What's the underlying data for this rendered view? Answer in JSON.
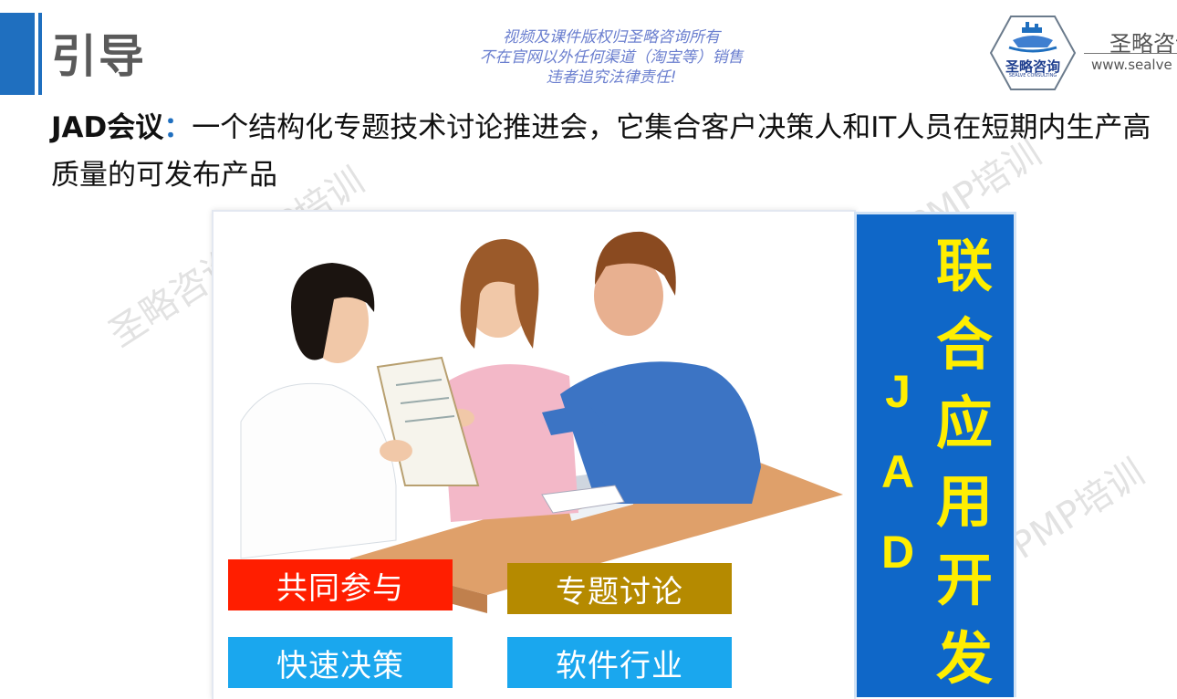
{
  "header": {
    "title": "引导",
    "notice_lines": [
      "视频及课件版权归圣略咨询所有",
      "不在官网以外任何渠道（淘宝等）销售",
      "违者追究法律责任!"
    ],
    "logo_text": "圣略咨询",
    "logo_subtext": "SEALVE CONSULTING",
    "brand_name": "圣略咨询",
    "brand_url": "www.sealve"
  },
  "definition": {
    "term": "JAD会议",
    "colon": "：",
    "text": "一个结构化专题技术讨论推进会，它集合客户决策人和IT人员在短期内生产高质量的可发布产品"
  },
  "watermarks": [
    "圣略咨询PMP培训",
    "PMP培训",
    "PMP培训"
  ],
  "image": {
    "tags": [
      "共同参与",
      "专题讨论",
      "快速决策",
      "软件行业"
    ]
  },
  "jad_panel": {
    "letters": [
      "J",
      "A",
      "D"
    ],
    "chars": [
      "联",
      "合",
      "应",
      "用",
      "开",
      "发"
    ]
  },
  "colors": {
    "accent": "#1f6fbf",
    "panel_blue": "#0f67c8",
    "panel_text": "#ffee00",
    "tag_red": "#ff1e00",
    "tag_gold": "#b58a00",
    "tag_blue": "#1aa7ee"
  }
}
